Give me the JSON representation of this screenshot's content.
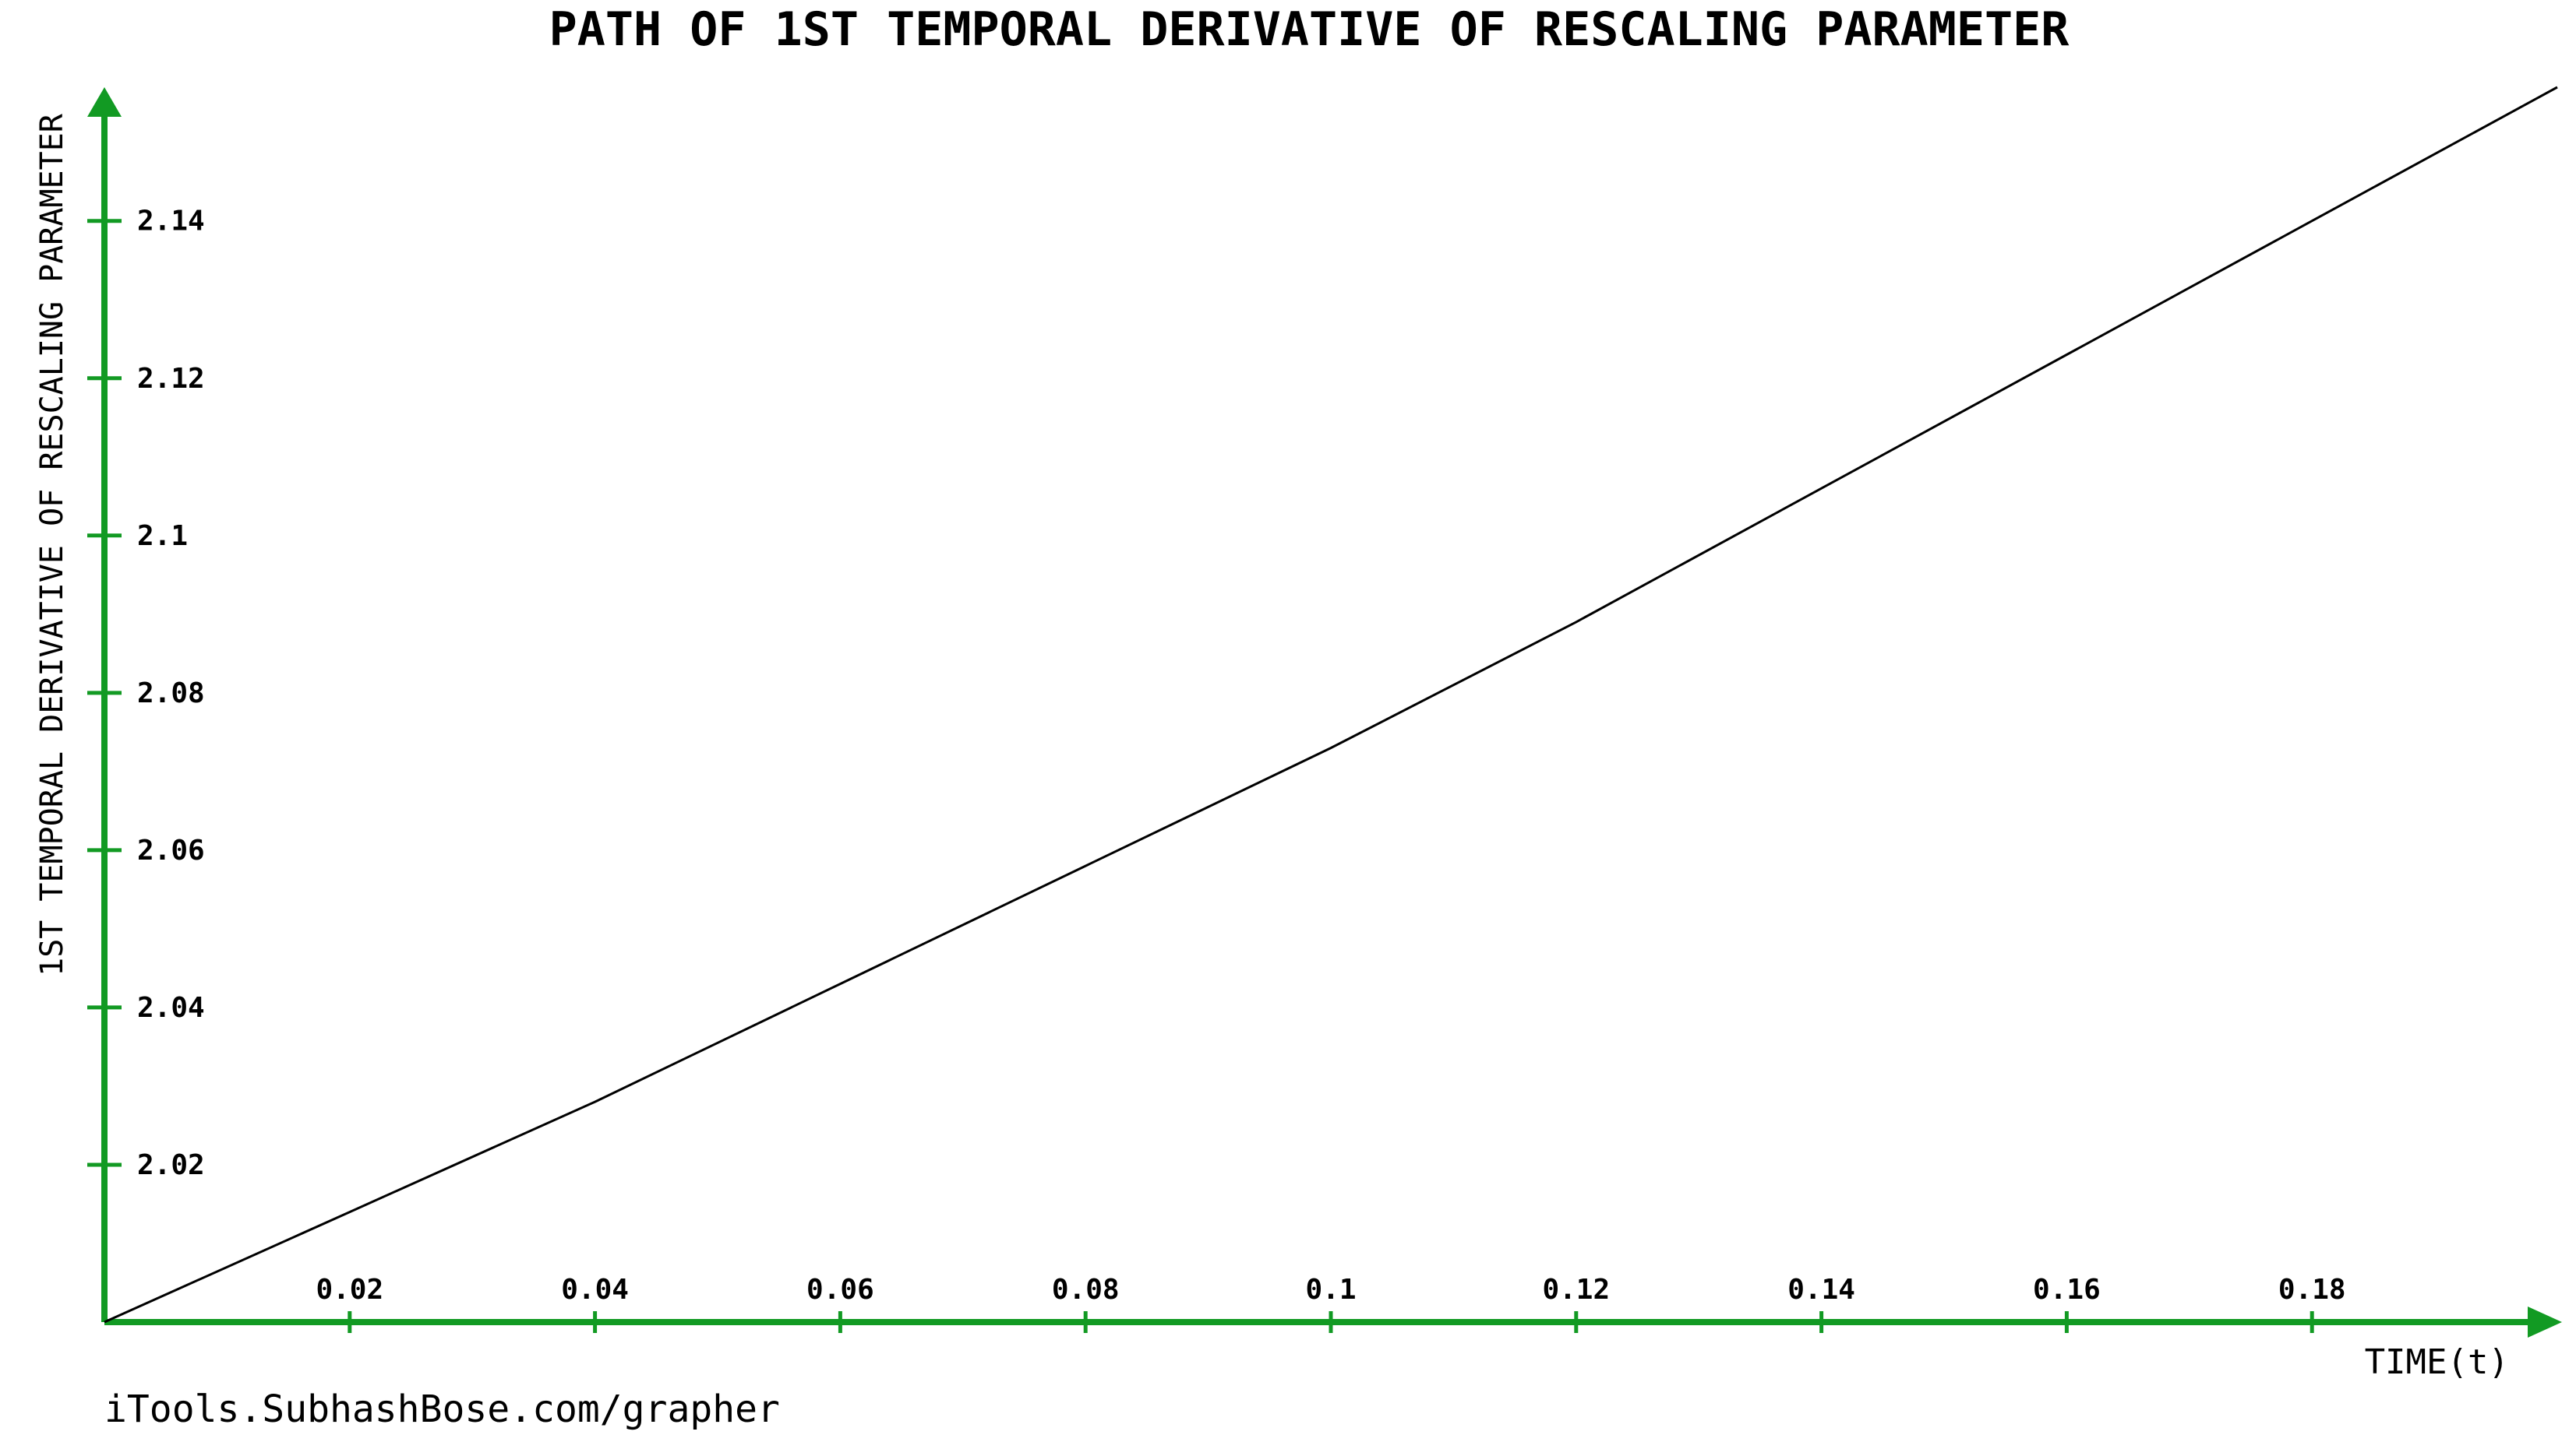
{
  "chart_data": {
    "type": "line",
    "title": "PATH OF 1ST TEMPORAL DERIVATIVE OF RESCALING PARAMETER",
    "xlabel": "TIME(t)",
    "ylabel": "1ST TEMPORAL DERIVATIVE OF RESCALING PARAMETER",
    "footer": "iTools.SubhashBose.com/grapher",
    "xlim": [
      0,
      0.2
    ],
    "ylim": [
      2.0,
      2.157
    ],
    "x_ticks": [
      0.02,
      0.04,
      0.06,
      0.08,
      0.1,
      0.12,
      0.14,
      0.16,
      0.18
    ],
    "x_tick_labels": [
      "0.02",
      "0.04",
      "0.06",
      "0.08",
      "0.1",
      "0.12",
      "0.14",
      "0.16",
      "0.18"
    ],
    "y_ticks": [
      2.02,
      2.04,
      2.06,
      2.08,
      2.1,
      2.12,
      2.14
    ],
    "y_tick_labels": [
      "2.02",
      "2.04",
      "2.06",
      "2.08",
      "2.1",
      "2.12",
      "2.14"
    ],
    "grid": false,
    "axis_color": "#129A23",
    "line_color": "#000000",
    "series": [
      {
        "x": [
          0,
          0.02,
          0.04,
          0.06,
          0.08,
          0.1,
          0.12,
          0.14,
          0.16,
          0.18,
          0.2
        ],
        "y": [
          2.0,
          2.014,
          2.028,
          2.043,
          2.058,
          2.073,
          2.089,
          2.106,
          2.123,
          2.14,
          2.157
        ]
      }
    ]
  }
}
